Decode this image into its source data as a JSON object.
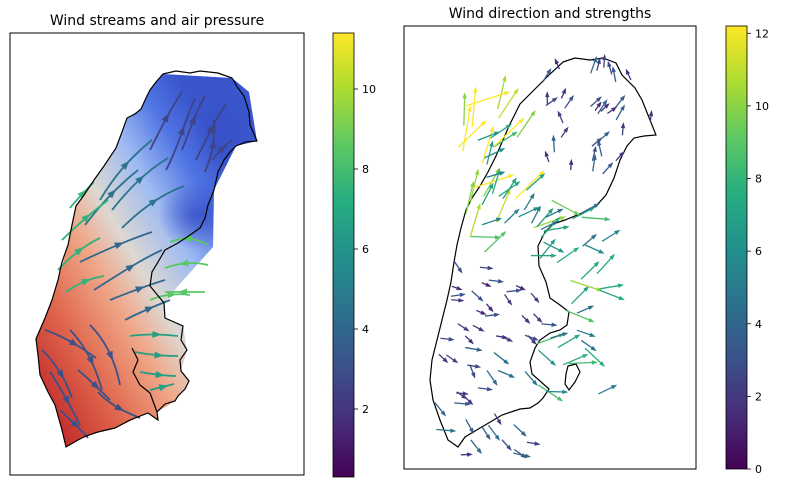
{
  "chart_data": [
    {
      "type": "streamplot",
      "title": "Wind streams and air pressure",
      "background": "air pressure field (diverging coolwarm colormap: blue = low, red = high)",
      "low_pressure_region": "northeast / upper-right of the map",
      "high_pressure_region": "south / lower-left of the map",
      "colorbar": {
        "colormap": "viridis",
        "ticks": [
          2,
          4,
          6,
          8,
          10
        ],
        "range": [
          0.3,
          11.4
        ]
      },
      "stream_speed_regions": [
        {
          "region": "north",
          "speed": 2.5
        },
        {
          "region": "north-west",
          "speed": 4.5
        },
        {
          "region": "west",
          "speed": 7.5
        },
        {
          "region": "east coast",
          "speed": 8.5
        },
        {
          "region": "central",
          "speed": 4.0
        },
        {
          "region": "south",
          "speed": 3.0
        },
        {
          "region": "south-east",
          "speed": 6.5
        }
      ]
    },
    {
      "type": "quiver",
      "title": "Wind direction and strengths",
      "colorbar": {
        "colormap": "viridis",
        "ticks": [
          0,
          2,
          4,
          6,
          8,
          10,
          12
        ],
        "range": [
          0,
          12.2
        ]
      },
      "arrow_speed_regions": [
        {
          "region": "north-west coast",
          "speed": 11.0
        },
        {
          "region": "north",
          "speed": 3.0
        },
        {
          "region": "west",
          "speed": 8.5
        },
        {
          "region": "east coast",
          "speed": 7.5
        },
        {
          "region": "central",
          "speed": 2.5
        },
        {
          "region": "south",
          "speed": 3.5
        },
        {
          "region": "south-east",
          "speed": 7.0
        }
      ]
    }
  ]
}
